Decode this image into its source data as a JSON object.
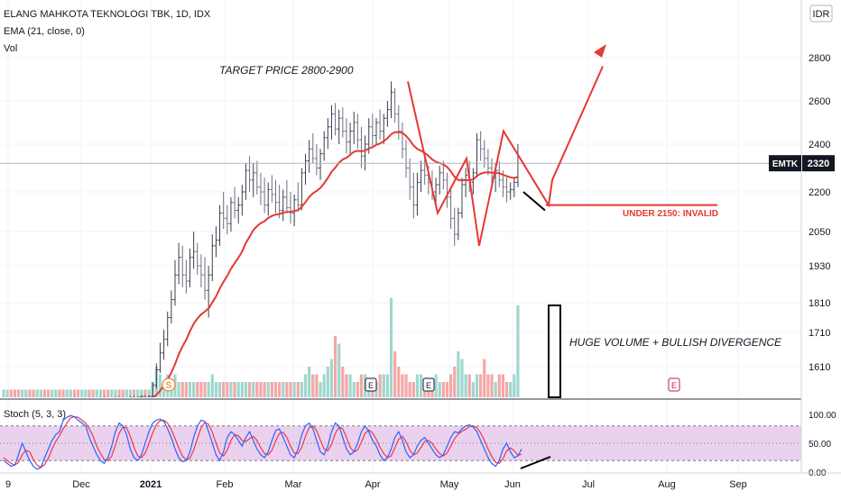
{
  "header": {
    "symbol_line": "ELANG MAHKOTA TEKNOLOGI TBK, 1D, IDX",
    "ema_line": "EMA (21, close, 0)",
    "vol_line": "Vol",
    "currency": "IDR"
  },
  "annotations": {
    "target": "TARGET PRICE 2800-2900",
    "invalid": "UNDER 2150: INVALID",
    "volume": "HUGE VOLUME + BULLISH DIVERGENCE"
  },
  "price_badge": {
    "ticker": "EMTK",
    "value": "2320"
  },
  "stoch_label": "Stoch (5, 3, 3)",
  "colors": {
    "up": "#26a69a",
    "down": "#ef5350",
    "ema": "#e53935",
    "annotation": "#e53935",
    "stoch_k": "#2962ff",
    "stoch_d": "#f23645",
    "stoch_band": "#e1bee7",
    "grid": "#f0f3fa",
    "axis_text": "#131722"
  },
  "chart_data": [
    {
      "type": "candlestick",
      "title": "ELANG MAHKOTA TEKNOLOGI TBK, 1D, IDX",
      "y_ticks": [
        "2800",
        "2600",
        "2400",
        "2200",
        "2050",
        "1930",
        "1810",
        "1710",
        "1610"
      ],
      "x_ticks": [
        "9",
        "Dec",
        "2021",
        "Feb",
        "Mar",
        "Apr",
        "May",
        "Jun",
        "Jul",
        "Aug",
        "Sep"
      ],
      "ohlc": [
        [
          1500,
          1505,
          1495,
          1500
        ],
        [
          1500,
          1510,
          1495,
          1505
        ],
        [
          1505,
          1510,
          1498,
          1502
        ],
        [
          1502,
          1508,
          1496,
          1500
        ],
        [
          1500,
          1506,
          1494,
          1498
        ],
        [
          1498,
          1504,
          1492,
          1500
        ],
        [
          1500,
          1508,
          1496,
          1504
        ],
        [
          1504,
          1510,
          1498,
          1502
        ],
        [
          1502,
          1508,
          1496,
          1500
        ],
        [
          1500,
          1506,
          1495,
          1503
        ],
        [
          1503,
          1510,
          1497,
          1505
        ],
        [
          1505,
          1512,
          1499,
          1501
        ],
        [
          1501,
          1507,
          1495,
          1499
        ],
        [
          1499,
          1505,
          1493,
          1502
        ],
        [
          1502,
          1509,
          1497,
          1506
        ],
        [
          1506,
          1512,
          1500,
          1503
        ],
        [
          1503,
          1509,
          1497,
          1500
        ],
        [
          1500,
          1506,
          1494,
          1504
        ],
        [
          1504,
          1510,
          1498,
          1507
        ],
        [
          1507,
          1514,
          1501,
          1504
        ],
        [
          1504,
          1510,
          1498,
          1501
        ],
        [
          1501,
          1507,
          1495,
          1505
        ],
        [
          1505,
          1512,
          1499,
          1508
        ],
        [
          1508,
          1514,
          1502,
          1505
        ],
        [
          1505,
          1511,
          1499,
          1502
        ],
        [
          1502,
          1508,
          1496,
          1506
        ],
        [
          1506,
          1513,
          1500,
          1509
        ],
        [
          1509,
          1515,
          1503,
          1506
        ],
        [
          1506,
          1512,
          1500,
          1503
        ],
        [
          1503,
          1509,
          1497,
          1507
        ],
        [
          1507,
          1514,
          1501,
          1510
        ],
        [
          1510,
          1516,
          1504,
          1508
        ],
        [
          1508,
          1514,
          1502,
          1505
        ],
        [
          1505,
          1511,
          1499,
          1509
        ],
        [
          1509,
          1515,
          1503,
          1511
        ],
        [
          1511,
          1518,
          1505,
          1508
        ],
        [
          1508,
          1514,
          1502,
          1512
        ],
        [
          1512,
          1518,
          1506,
          1514
        ],
        [
          1514,
          1520,
          1508,
          1511
        ],
        [
          1511,
          1517,
          1505,
          1515
        ],
        [
          1515,
          1560,
          1510,
          1550
        ],
        [
          1550,
          1620,
          1540,
          1600
        ],
        [
          1600,
          1680,
          1590,
          1650
        ],
        [
          1650,
          1720,
          1630,
          1690
        ],
        [
          1690,
          1780,
          1670,
          1760
        ],
        [
          1760,
          1850,
          1740,
          1820
        ],
        [
          1820,
          1950,
          1800,
          1900
        ],
        [
          1900,
          2010,
          1870,
          1960
        ],
        [
          1960,
          2000,
          1860,
          1900
        ],
        [
          1900,
          1950,
          1840,
          1880
        ],
        [
          1880,
          1990,
          1860,
          1960
        ],
        [
          1960,
          2050,
          1920,
          1980
        ],
        [
          1980,
          2010,
          1900,
          1930
        ],
        [
          1930,
          1970,
          1860,
          1900
        ],
        [
          1900,
          1960,
          1820,
          1850
        ],
        [
          1850,
          1930,
          1760,
          1900
        ],
        [
          1900,
          2040,
          1880,
          2000
        ],
        [
          2000,
          2070,
          1960,
          2020
        ],
        [
          2020,
          2150,
          2000,
          2120
        ],
        [
          2120,
          2200,
          2060,
          2100
        ],
        [
          2100,
          2150,
          2040,
          2080
        ],
        [
          2080,
          2180,
          2050,
          2160
        ],
        [
          2160,
          2220,
          2100,
          2130
        ],
        [
          2130,
          2180,
          2080,
          2150
        ],
        [
          2150,
          2230,
          2110,
          2200
        ],
        [
          2200,
          2320,
          2170,
          2290
        ],
        [
          2290,
          2350,
          2200,
          2250
        ],
        [
          2250,
          2320,
          2180,
          2280
        ],
        [
          2280,
          2330,
          2190,
          2220
        ],
        [
          2220,
          2280,
          2150,
          2200
        ],
        [
          2200,
          2260,
          2120,
          2150
        ],
        [
          2150,
          2240,
          2110,
          2210
        ],
        [
          2210,
          2270,
          2160,
          2190
        ],
        [
          2190,
          2250,
          2120,
          2160
        ],
        [
          2160,
          2230,
          2100,
          2130
        ],
        [
          2130,
          2210,
          2090,
          2180
        ],
        [
          2180,
          2250,
          2120,
          2140
        ],
        [
          2140,
          2200,
          2080,
          2120
        ],
        [
          2120,
          2190,
          2070,
          2170
        ],
        [
          2170,
          2240,
          2130,
          2150
        ],
        [
          2150,
          2300,
          2130,
          2280
        ],
        [
          2280,
          2360,
          2230,
          2330
        ],
        [
          2330,
          2420,
          2280,
          2380
        ],
        [
          2380,
          2450,
          2320,
          2340
        ],
        [
          2340,
          2400,
          2270,
          2300
        ],
        [
          2300,
          2380,
          2250,
          2360
        ],
        [
          2360,
          2460,
          2330,
          2430
        ],
        [
          2430,
          2520,
          2380,
          2480
        ],
        [
          2480,
          2580,
          2420,
          2540
        ],
        [
          2540,
          2590,
          2440,
          2470
        ],
        [
          2470,
          2560,
          2400,
          2520
        ],
        [
          2520,
          2570,
          2430,
          2460
        ],
        [
          2460,
          2520,
          2360,
          2410
        ],
        [
          2410,
          2500,
          2350,
          2460
        ],
        [
          2460,
          2550,
          2400,
          2500
        ],
        [
          2500,
          2540,
          2380,
          2420
        ],
        [
          2420,
          2480,
          2300,
          2350
        ],
        [
          2350,
          2440,
          2290,
          2400
        ],
        [
          2400,
          2520,
          2360,
          2480
        ],
        [
          2480,
          2540,
          2390,
          2440
        ],
        [
          2440,
          2520,
          2400,
          2500
        ],
        [
          2500,
          2560,
          2420,
          2460
        ],
        [
          2460,
          2540,
          2400,
          2520
        ],
        [
          2520,
          2600,
          2480,
          2560
        ],
        [
          2560,
          2690,
          2520,
          2640
        ],
        [
          2640,
          2660,
          2500,
          2540
        ],
        [
          2540,
          2580,
          2420,
          2460
        ],
        [
          2460,
          2500,
          2340,
          2380
        ],
        [
          2380,
          2420,
          2260,
          2300
        ],
        [
          2300,
          2340,
          2170,
          2220
        ],
        [
          2220,
          2280,
          2100,
          2150
        ],
        [
          2150,
          2280,
          2110,
          2240
        ],
        [
          2240,
          2330,
          2200,
          2290
        ],
        [
          2290,
          2350,
          2230,
          2270
        ],
        [
          2270,
          2310,
          2190,
          2240
        ],
        [
          2240,
          2290,
          2170,
          2200
        ],
        [
          2200,
          2260,
          2150,
          2230
        ],
        [
          2230,
          2310,
          2190,
          2280
        ],
        [
          2280,
          2330,
          2210,
          2250
        ],
        [
          2250,
          2280,
          2140,
          2180
        ],
        [
          2180,
          2220,
          2060,
          2100
        ],
        [
          2100,
          2140,
          2000,
          2040
        ],
        [
          2040,
          2140,
          2020,
          2120
        ],
        [
          2120,
          2260,
          2100,
          2230
        ],
        [
          2230,
          2300,
          2180,
          2270
        ],
        [
          2270,
          2330,
          2200,
          2240
        ],
        [
          2240,
          2300,
          2190,
          2280
        ],
        [
          2280,
          2450,
          2260,
          2420
        ],
        [
          2420,
          2460,
          2330,
          2380
        ],
        [
          2380,
          2420,
          2300,
          2340
        ],
        [
          2340,
          2380,
          2270,
          2300
        ],
        [
          2300,
          2340,
          2230,
          2260
        ],
        [
          2260,
          2320,
          2200,
          2290
        ],
        [
          2290,
          2330,
          2220,
          2250
        ],
        [
          2250,
          2290,
          2180,
          2220
        ],
        [
          2220,
          2260,
          2160,
          2200
        ],
        [
          2200,
          2240,
          2170,
          2210
        ],
        [
          2210,
          2260,
          2180,
          2240
        ],
        [
          2240,
          2400,
          2220,
          2320
        ]
      ],
      "ema_21": [
        1500,
        1500,
        1500,
        1500,
        1500,
        1500,
        1501,
        1501,
        1501,
        1501,
        1501,
        1501,
        1501,
        1501,
        1502,
        1502,
        1502,
        1502,
        1502,
        1503,
        1503,
        1503,
        1503,
        1503,
        1504,
        1504,
        1504,
        1504,
        1504,
        1504,
        1505,
        1505,
        1505,
        1505,
        1506,
        1506,
        1506,
        1507,
        1507,
        1507,
        1511,
        1519,
        1533,
        1549,
        1568,
        1590,
        1617,
        1646,
        1669,
        1689,
        1714,
        1739,
        1757,
        1771,
        1780,
        1791,
        1811,
        1830,
        1856,
        1878,
        1897,
        1920,
        1939,
        1958,
        1980,
        2010,
        2032,
        2055,
        2070,
        2082,
        2089,
        2101,
        2109,
        2114,
        2116,
        2122,
        2124,
        2124,
        2128,
        2130,
        2144,
        2161,
        2181,
        2195,
        2204,
        2217,
        2236,
        2258,
        2284,
        2302,
        2322,
        2336,
        2343,
        2355,
        2368,
        2372,
        2370,
        2373,
        2382,
        2387,
        2397,
        2403,
        2414,
        2427,
        2446,
        2455,
        2456,
        2452,
        2438,
        2418,
        2394,
        2380,
        2372,
        2363,
        2351,
        2336,
        2326,
        2321,
        2315,
        2304,
        2286,
        2263,
        2250,
        2248,
        2250,
        2249,
        2252,
        2267,
        2276,
        2281,
        2282,
        2280,
        2281,
        2278,
        2272,
        2266,
        2261,
        2258,
        2263
      ],
      "volume": [
        1,
        1,
        1,
        1,
        1,
        1,
        1,
        1,
        1,
        1,
        1,
        1,
        1,
        1,
        1,
        1,
        1,
        1,
        1,
        1,
        1,
        1,
        1,
        1,
        1,
        1,
        1,
        1,
        1,
        1,
        1,
        1,
        1,
        1,
        1,
        1,
        1,
        1,
        1,
        1,
        2,
        4,
        3,
        2,
        3,
        2,
        3,
        2,
        2,
        2,
        2,
        2,
        2,
        2,
        2,
        2,
        3,
        2,
        2,
        2,
        2,
        2,
        2,
        2,
        2,
        2,
        2,
        2,
        2,
        2,
        2,
        2,
        2,
        2,
        2,
        2,
        2,
        2,
        2,
        2,
        2,
        3,
        4,
        3,
        3,
        2,
        3,
        4,
        5,
        8,
        7,
        4,
        3,
        3,
        2,
        2,
        3,
        3,
        2,
        2,
        2,
        3,
        3,
        3,
        13,
        6,
        4,
        3,
        3,
        2,
        2,
        3,
        3,
        2,
        2,
        2,
        3,
        2,
        2,
        2,
        3,
        4,
        6,
        5,
        3,
        3,
        2,
        3,
        3,
        5,
        3,
        3,
        2,
        3,
        3,
        2,
        2,
        3,
        12
      ],
      "stoch_k": [
        20,
        15,
        10,
        12,
        30,
        50,
        35,
        20,
        10,
        5,
        8,
        25,
        40,
        55,
        65,
        70,
        90,
        95,
        98,
        96,
        90,
        85,
        80,
        60,
        45,
        30,
        20,
        15,
        25,
        45,
        70,
        85,
        80,
        65,
        40,
        25,
        20,
        30,
        50,
        70,
        85,
        90,
        92,
        88,
        75,
        60,
        40,
        25,
        18,
        20,
        35,
        60,
        80,
        90,
        88,
        70,
        50,
        30,
        20,
        35,
        60,
        70,
        65,
        55,
        45,
        60,
        70,
        55,
        40,
        30,
        25,
        35,
        55,
        72,
        75,
        60,
        45,
        30,
        25,
        40,
        65,
        80,
        85,
        75,
        55,
        35,
        30,
        45,
        70,
        85,
        80,
        60,
        40,
        30,
        35,
        50,
        70,
        80,
        70,
        55,
        45,
        30,
        20,
        25,
        40,
        60,
        70,
        55,
        35,
        25,
        30,
        45,
        55,
        60,
        50,
        40,
        30,
        25,
        30,
        45,
        60,
        70,
        68,
        75,
        80,
        82,
        78,
        70,
        55,
        40,
        25,
        15,
        10,
        20,
        40,
        50,
        35,
        25,
        28,
        40
      ],
      "stoch_d": [
        25,
        20,
        15,
        12,
        17,
        30,
        38,
        35,
        22,
        12,
        8,
        13,
        24,
        40,
        53,
        63,
        75,
        85,
        94,
        96,
        95,
        90,
        85,
        75,
        62,
        45,
        32,
        22,
        20,
        28,
        47,
        67,
        78,
        77,
        62,
        43,
        28,
        25,
        33,
        50,
        68,
        82,
        89,
        90,
        85,
        74,
        58,
        42,
        28,
        21,
        24,
        38,
        58,
        77,
        86,
        83,
        69,
        50,
        33,
        28,
        38,
        55,
        65,
        63,
        55,
        53,
        58,
        62,
        55,
        42,
        32,
        30,
        38,
        54,
        67,
        69,
        60,
        45,
        33,
        32,
        43,
        62,
        77,
        80,
        72,
        55,
        40,
        37,
        48,
        67,
        78,
        75,
        60,
        43,
        35,
        38,
        52,
        67,
        73,
        68,
        57,
        43,
        32,
        25,
        28,
        42,
        57,
        62,
        53,
        38,
        30,
        33,
        43,
        53,
        55,
        50,
        40,
        32,
        28,
        33,
        45,
        58,
        66,
        71,
        74,
        79,
        80,
        77,
        68,
        55,
        40,
        27,
        17,
        15,
        23,
        37,
        42,
        37,
        29,
        31
      ]
    }
  ]
}
